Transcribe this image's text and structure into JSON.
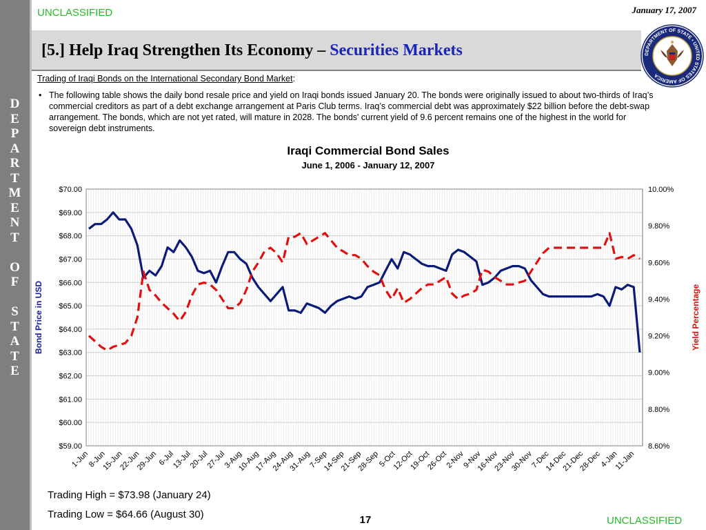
{
  "header": {
    "classification_top": "UNCLASSIFIED",
    "date": "January 17, 2007",
    "title_prefix": "[5.] Help Iraq Strengthen Its Economy – ",
    "title_highlight": "Securities Markets",
    "seal_icon": "department-of-state-seal",
    "seal_text": "DEPARTMENT OF STATE • UNITED STATES OF AMERICA"
  },
  "sidebar": {
    "letters": [
      "D",
      "E",
      "P",
      "A",
      "R",
      "T",
      "M",
      "E",
      "N",
      "T",
      "",
      "O",
      "F",
      "",
      "S",
      "T",
      "A",
      "T",
      "E"
    ]
  },
  "body": {
    "subheading": "Trading of Iraqi Bonds on the International Secondary Bond Market",
    "subheading_suffix": ":",
    "bullet": "The following table shows the daily bond resale price and yield on Iraqi bonds issued January 20.  The bonds were originally issued to about two-thirds of Iraq’s commercial creditors as part of a debt exchange arrangement at Paris Club terms.  Iraq’s commercial debt was approximately $22 billion before the debt-swap arrangement.  The bonds, which are not yet rated, will mature in 2028.  The bonds' current yield of 9.6 percent remains one of the highest in the world for sovereign debt instruments."
  },
  "chart_data": {
    "type": "line",
    "title": "Iraqi Commercial Bond Sales",
    "subtitle": "June 1, 2006 - January 12, 2007",
    "ylabel": "Bond Price in USD",
    "y2label": "Yield Percentage",
    "ylim": [
      59,
      70
    ],
    "y2lim": [
      8.6,
      10.0
    ],
    "y_ticks": [
      "$70.00",
      "$69.00",
      "$68.00",
      "$67.00",
      "$66.00",
      "$65.00",
      "$64.00",
      "$63.00",
      "$62.00",
      "$61.00",
      "$60.00",
      "$59.00"
    ],
    "y2_ticks": [
      "10.00%",
      "9.80%",
      "9.60%",
      "9.40%",
      "9.20%",
      "9.00%",
      "8.80%",
      "8.60%"
    ],
    "x_ticks": [
      "1-Jun",
      "8-Jun",
      "15-Jun",
      "22-Jun",
      "29-Jun",
      "6-Jul",
      "13-Jul",
      "20-Jul",
      "27-Jul",
      "3-Aug",
      "10-Aug",
      "17-Aug",
      "24-Aug",
      "31-Aug",
      "7-Sep",
      "14-Sep",
      "21-Sep",
      "28-Sep",
      "5-Oct",
      "12-Oct",
      "19-Oct",
      "26-Oct",
      "2-Nov",
      "9-Nov",
      "16-Nov",
      "23-Nov",
      "30-Nov",
      "7-Dec",
      "14-Dec",
      "21-Dec",
      "28-Dec",
      "4-Jan",
      "11-Jan"
    ],
    "grid": true,
    "colors": {
      "price": "#0a1a78",
      "yield": "#e01010"
    },
    "series": [
      {
        "name": "Bond Price in USD",
        "axis": "left",
        "style": "solid",
        "values": [
          68.3,
          68.5,
          68.5,
          68.7,
          69.0,
          68.7,
          68.7,
          68.3,
          67.6,
          66.2,
          66.5,
          66.3,
          66.7,
          67.5,
          67.3,
          67.8,
          67.5,
          67.1,
          66.5,
          66.4,
          66.5,
          66.0,
          66.7,
          67.3,
          67.3,
          67.0,
          66.8,
          66.2,
          65.8,
          65.5,
          65.2,
          65.5,
          65.8,
          64.8,
          64.8,
          64.7,
          65.1,
          65.0,
          64.9,
          64.7,
          65.0,
          65.2,
          65.3,
          65.4,
          65.3,
          65.4,
          65.8,
          65.9,
          66.0,
          66.5,
          67.0,
          66.6,
          67.3,
          67.2,
          67.0,
          66.8,
          66.7,
          66.7,
          66.6,
          66.5,
          67.2,
          67.4,
          67.3,
          67.1,
          66.9,
          65.9,
          66.0,
          66.2,
          66.5,
          66.6,
          66.7,
          66.7,
          66.6,
          66.1,
          65.8,
          65.5,
          65.4,
          65.4,
          65.4,
          65.4,
          65.4,
          65.4,
          65.4,
          65.4,
          65.5,
          65.4,
          65.0,
          65.8,
          65.7,
          65.9,
          65.8,
          63.0
        ]
      },
      {
        "name": "Yield Percentage",
        "axis": "right",
        "style": "dashed",
        "values": [
          9.2,
          9.17,
          9.14,
          9.12,
          9.14,
          9.15,
          9.16,
          9.2,
          9.3,
          9.55,
          9.45,
          9.42,
          9.38,
          9.35,
          9.32,
          9.28,
          9.33,
          9.42,
          9.48,
          9.49,
          9.48,
          9.45,
          9.4,
          9.35,
          9.35,
          9.38,
          9.45,
          9.55,
          9.6,
          9.66,
          9.68,
          9.65,
          9.6,
          9.74,
          9.74,
          9.76,
          9.7,
          9.72,
          9.74,
          9.76,
          9.72,
          9.68,
          9.66,
          9.64,
          9.64,
          9.62,
          9.58,
          9.55,
          9.53,
          9.45,
          9.4,
          9.46,
          9.38,
          9.4,
          9.43,
          9.46,
          9.48,
          9.48,
          9.5,
          9.52,
          9.43,
          9.4,
          9.42,
          9.43,
          9.45,
          9.56,
          9.55,
          9.52,
          9.5,
          9.48,
          9.48,
          9.49,
          9.5,
          9.55,
          9.6,
          9.65,
          9.68,
          9.68,
          9.68,
          9.68,
          9.68,
          9.68,
          9.68,
          9.68,
          9.68,
          9.68,
          9.76,
          9.62,
          9.63,
          9.62,
          9.64,
          9.62
        ]
      }
    ]
  },
  "footer": {
    "trading_high": "Trading High = $73.98 (January 24)",
    "trading_low": "Trading Low = $64.66  (August 30)",
    "page_number": "17",
    "classification_bottom": "UNCLASSIFIED"
  }
}
